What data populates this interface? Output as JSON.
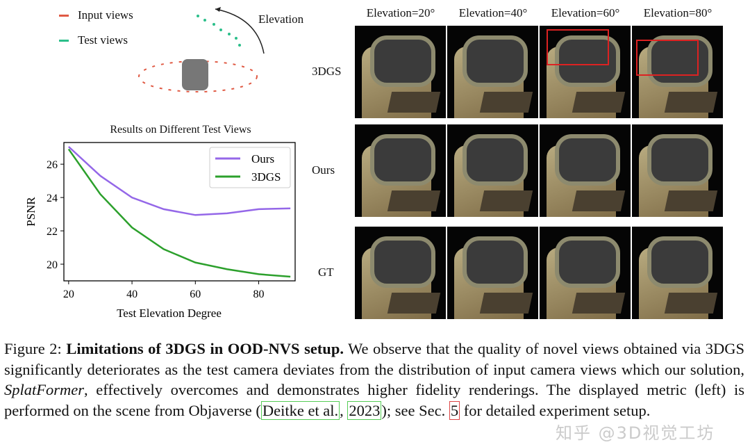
{
  "diagram": {
    "legend": [
      {
        "label": "Input views",
        "color": "#e05a44"
      },
      {
        "label": "Test views",
        "color": "#2bbf8a"
      }
    ],
    "arrow_label": "Elevation"
  },
  "grid": {
    "columns": [
      "Elevation=20°",
      "Elevation=40°",
      "Elevation=60°",
      "Elevation=80°"
    ],
    "rows": [
      "3DGS",
      "Ours",
      "GT"
    ]
  },
  "chart_data": {
    "type": "line",
    "title": "Results on Different Test Views",
    "xlabel": "Test Elevation Degree",
    "ylabel": "PSNR",
    "x": [
      20,
      30,
      40,
      50,
      60,
      70,
      80,
      90
    ],
    "series": [
      {
        "name": "Ours",
        "color": "#9467e8",
        "values": [
          27.05,
          25.3,
          24.0,
          23.3,
          22.95,
          23.05,
          23.3,
          23.35
        ]
      },
      {
        "name": "3DGS",
        "color": "#2ca02c",
        "values": [
          26.9,
          24.2,
          22.2,
          20.9,
          20.1,
          19.7,
          19.4,
          19.25
        ]
      }
    ],
    "xlim": [
      18.5,
      91.5
    ],
    "ylim": [
      19.0,
      27.3
    ],
    "xticks": [
      20,
      40,
      60,
      80
    ],
    "yticks": [
      20,
      22,
      24,
      26
    ],
    "legend": "top-right",
    "grid": false
  },
  "caption": {
    "label": "Figure 2:",
    "bold": "Limitations of 3DGS in OOD-NVS setup.",
    "t1": " We observe that the quality of novel views obtained via 3DGS significantly deteriorates as the test camera deviates from the distribution of input camera views which our solution, ",
    "italic": "SplatFormer",
    "t2": ", effectively overcomes and demonstrates higher fidelity renderings. The displayed metric (left) is performed on the scene from Objaverse (",
    "cite_a": "Deitke et al.",
    "t3": ", ",
    "cite_b": "2023",
    "t4": "); see Sec. ",
    "ref": "5",
    "t5": " for detailed experiment setup."
  },
  "watermark": "知乎 @3D视觉工坊"
}
